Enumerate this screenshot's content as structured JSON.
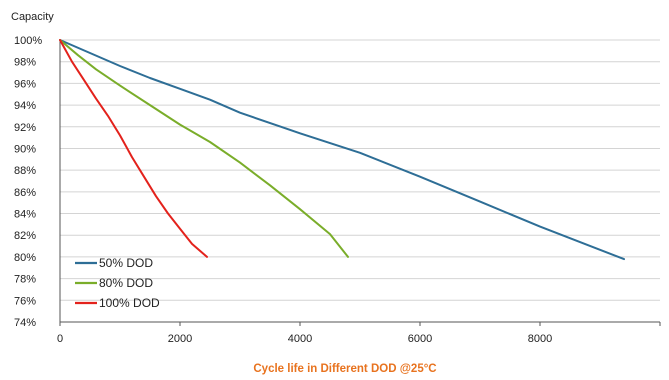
{
  "chart_data": {
    "type": "line",
    "title": "Cycle life in Different DOD @25°C",
    "title_color": "#e8731f",
    "ylabel": "Capacity",
    "xlabel": "",
    "xlim": [
      0,
      10000
    ],
    "ylim": [
      74,
      100
    ],
    "x_ticks": [
      0,
      2000,
      4000,
      6000,
      8000
    ],
    "y_ticks": [
      74,
      76,
      78,
      80,
      82,
      84,
      86,
      88,
      90,
      92,
      94,
      96,
      98,
      100
    ],
    "y_tick_format": "percent",
    "grid": "horizontal",
    "legend_position": "bottom-left",
    "series": [
      {
        "name": "50% DOD",
        "color": "#2e6e96",
        "points": [
          [
            0,
            100
          ],
          [
            500,
            98.8
          ],
          [
            1000,
            97.6
          ],
          [
            1500,
            96.5
          ],
          [
            2000,
            95.5
          ],
          [
            2500,
            94.5
          ],
          [
            3000,
            93.3
          ],
          [
            4000,
            91.4
          ],
          [
            5000,
            89.6
          ],
          [
            6000,
            87.4
          ],
          [
            7000,
            85.1
          ],
          [
            8000,
            82.8
          ],
          [
            9400,
            79.8
          ]
        ]
      },
      {
        "name": "80% DOD",
        "color": "#7aad2a",
        "points": [
          [
            0,
            100
          ],
          [
            300,
            98.6
          ],
          [
            600,
            97.3
          ],
          [
            1000,
            95.8
          ],
          [
            1500,
            94.0
          ],
          [
            2000,
            92.2
          ],
          [
            2500,
            90.6
          ],
          [
            3000,
            88.7
          ],
          [
            3500,
            86.6
          ],
          [
            4000,
            84.4
          ],
          [
            4500,
            82.1
          ],
          [
            4800,
            80.0
          ]
        ]
      },
      {
        "name": "100% DOD",
        "color": "#e3221c",
        "points": [
          [
            0,
            100
          ],
          [
            200,
            98.0
          ],
          [
            400,
            96.3
          ],
          [
            600,
            94.6
          ],
          [
            800,
            93.0
          ],
          [
            1000,
            91.2
          ],
          [
            1200,
            89.2
          ],
          [
            1400,
            87.4
          ],
          [
            1600,
            85.6
          ],
          [
            1800,
            84.0
          ],
          [
            2000,
            82.6
          ],
          [
            2200,
            81.2
          ],
          [
            2450,
            80.0
          ]
        ]
      }
    ]
  }
}
